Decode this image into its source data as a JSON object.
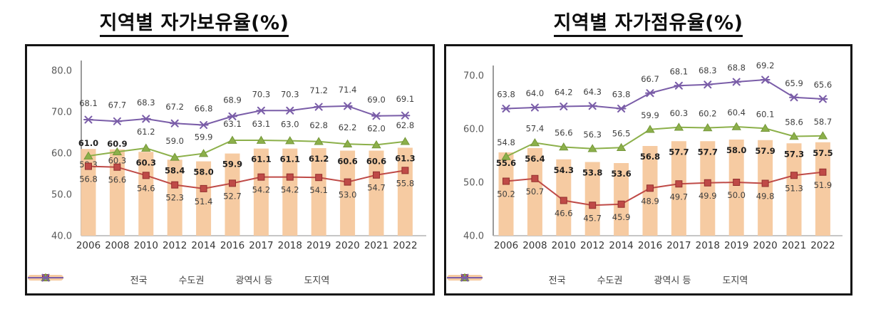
{
  "chart_data": [
    {
      "id": "ownership",
      "type": "bar",
      "title": "지역별 자가보유율(%)",
      "categories": [
        "2006",
        "2008",
        "2010",
        "2012",
        "2014",
        "2016",
        "2017",
        "2018",
        "2019",
        "2020",
        "2021",
        "2022"
      ],
      "ylim": [
        40,
        80
      ],
      "yticks": [
        80.0,
        70.0,
        60.0,
        50.0,
        40.0
      ],
      "grid": false,
      "legend_position": "bottom",
      "series": [
        {
          "key": "nationwide",
          "name": "전국",
          "kind": "bar",
          "color": "#F6CBA2",
          "label_style": "bold",
          "values": [
            61.0,
            60.9,
            60.3,
            58.4,
            58.0,
            59.9,
            61.1,
            61.1,
            61.2,
            60.6,
            60.6,
            61.3
          ]
        },
        {
          "key": "capital-area",
          "name": "수도권",
          "kind": "line",
          "marker": "square",
          "color": "#BF4A47",
          "values": [
            56.8,
            56.6,
            54.6,
            52.3,
            51.4,
            52.7,
            54.2,
            54.2,
            54.1,
            53.0,
            54.7,
            55.8
          ]
        },
        {
          "key": "metropolitan",
          "name": "광역시 등",
          "kind": "line",
          "marker": "triangle",
          "color": "#8CB04A",
          "values": [
            59.3,
            60.3,
            61.2,
            59.0,
            59.9,
            63.1,
            63.1,
            63.0,
            62.8,
            62.2,
            62.0,
            62.8
          ]
        },
        {
          "key": "province",
          "name": "도지역",
          "kind": "line",
          "marker": "x",
          "color": "#7A5DA8",
          "values": [
            68.1,
            67.7,
            68.3,
            67.2,
            66.8,
            68.9,
            70.3,
            70.3,
            71.2,
            71.4,
            69.0,
            69.1
          ]
        }
      ]
    },
    {
      "id": "occupancy",
      "type": "bar",
      "title": "지역별 자가점유율(%)",
      "categories": [
        "2006",
        "2008",
        "2010",
        "2012",
        "2014",
        "2016",
        "2017",
        "2018",
        "2019",
        "2020",
        "2021",
        "2022"
      ],
      "ylim": [
        40,
        70
      ],
      "yticks": [
        70.0,
        60.0,
        50.0,
        40.0
      ],
      "grid": false,
      "legend_position": "bottom",
      "series": [
        {
          "key": "nationwide",
          "name": "전국",
          "kind": "bar",
          "color": "#F6CBA2",
          "label_style": "bold",
          "values": [
            55.6,
            56.4,
            54.3,
            53.8,
            53.6,
            56.8,
            57.7,
            57.7,
            58.0,
            57.9,
            57.3,
            57.5
          ]
        },
        {
          "key": "capital-area",
          "name": "수도권",
          "kind": "line",
          "marker": "square",
          "color": "#BF4A47",
          "values": [
            50.2,
            50.7,
            46.6,
            45.7,
            45.9,
            48.9,
            49.7,
            49.9,
            50.0,
            49.8,
            51.3,
            51.9
          ]
        },
        {
          "key": "metropolitan",
          "name": "광역시 등",
          "kind": "line",
          "marker": "triangle",
          "color": "#8CB04A",
          "values": [
            54.8,
            57.4,
            56.6,
            56.3,
            56.5,
            59.9,
            60.3,
            60.2,
            60.4,
            60.1,
            58.6,
            58.7
          ]
        },
        {
          "key": "province",
          "name": "도지역",
          "kind": "line",
          "marker": "x",
          "color": "#7A5DA8",
          "values": [
            63.8,
            64.0,
            64.2,
            64.3,
            63.8,
            66.7,
            68.1,
            68.3,
            68.8,
            69.2,
            65.9,
            65.6
          ]
        }
      ]
    }
  ],
  "colors": {
    "bar_fill": "#F6CBA2",
    "capital_line": "#BF4A47",
    "metropolitan_line": "#8CB04A",
    "province_line": "#7A5DA8",
    "label_regular": "#3f3f3f",
    "label_bold": "#1f1f1f",
    "tick_label": "#595959",
    "axis_line": "#808080"
  }
}
